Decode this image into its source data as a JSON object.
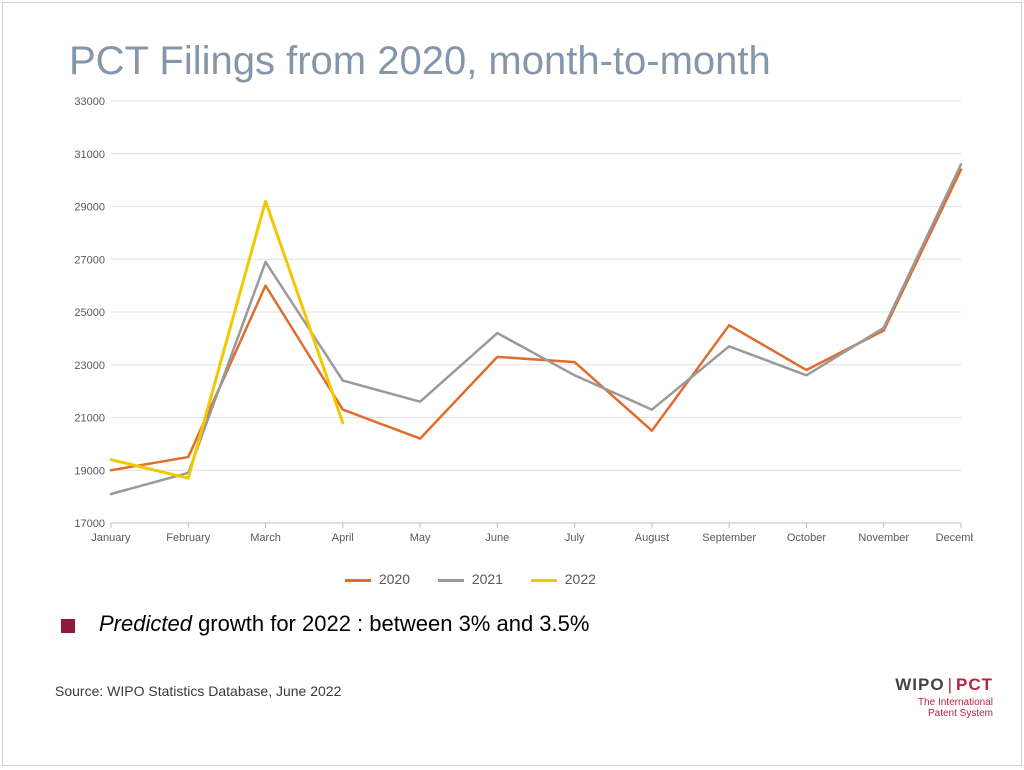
{
  "title": "PCT Filings from 2020, month-to-month",
  "chart": {
    "type": "line",
    "categories": [
      "January",
      "February",
      "March",
      "April",
      "May",
      "June",
      "July",
      "August",
      "September",
      "October",
      "November",
      "December"
    ],
    "series": [
      {
        "name": "2020",
        "color": "#e06c2d",
        "width": 2.5,
        "values": [
          19000,
          19500,
          26000,
          21300,
          20200,
          23300,
          23100,
          20500,
          24500,
          22800,
          24300,
          30400
        ]
      },
      {
        "name": "2021",
        "color": "#9a9a9a",
        "width": 2.5,
        "values": [
          18100,
          18900,
          26900,
          22400,
          21600,
          24200,
          22600,
          21300,
          23700,
          22600,
          24400,
          30600
        ]
      },
      {
        "name": "2022",
        "color": "#f2c900",
        "width": 3,
        "values": [
          19400,
          18700,
          29200,
          20800,
          null,
          null,
          null,
          null,
          null,
          null,
          null,
          null
        ]
      }
    ],
    "ylim": [
      17000,
      33000
    ],
    "ytick_step": 2000,
    "xlabel_fontsize": 11,
    "ylabel_fontsize": 11,
    "axis_color": "#bfbfbf",
    "grid_color": "#e0e0e0",
    "tick_label_color": "#595959",
    "background_color": "#ffffff"
  },
  "legend_labels": {
    "s0": "2020",
    "s1": "2021",
    "s2": "2022"
  },
  "note": {
    "italic": "Predicted",
    "rest": " growth for 2022 : between 3% and 3.5%"
  },
  "source": "Source:  WIPO Statistics Database, June 2022",
  "logo": {
    "wipo": "WIPO",
    "pct": "PCT",
    "tag1": "The International",
    "tag2": "Patent System"
  }
}
